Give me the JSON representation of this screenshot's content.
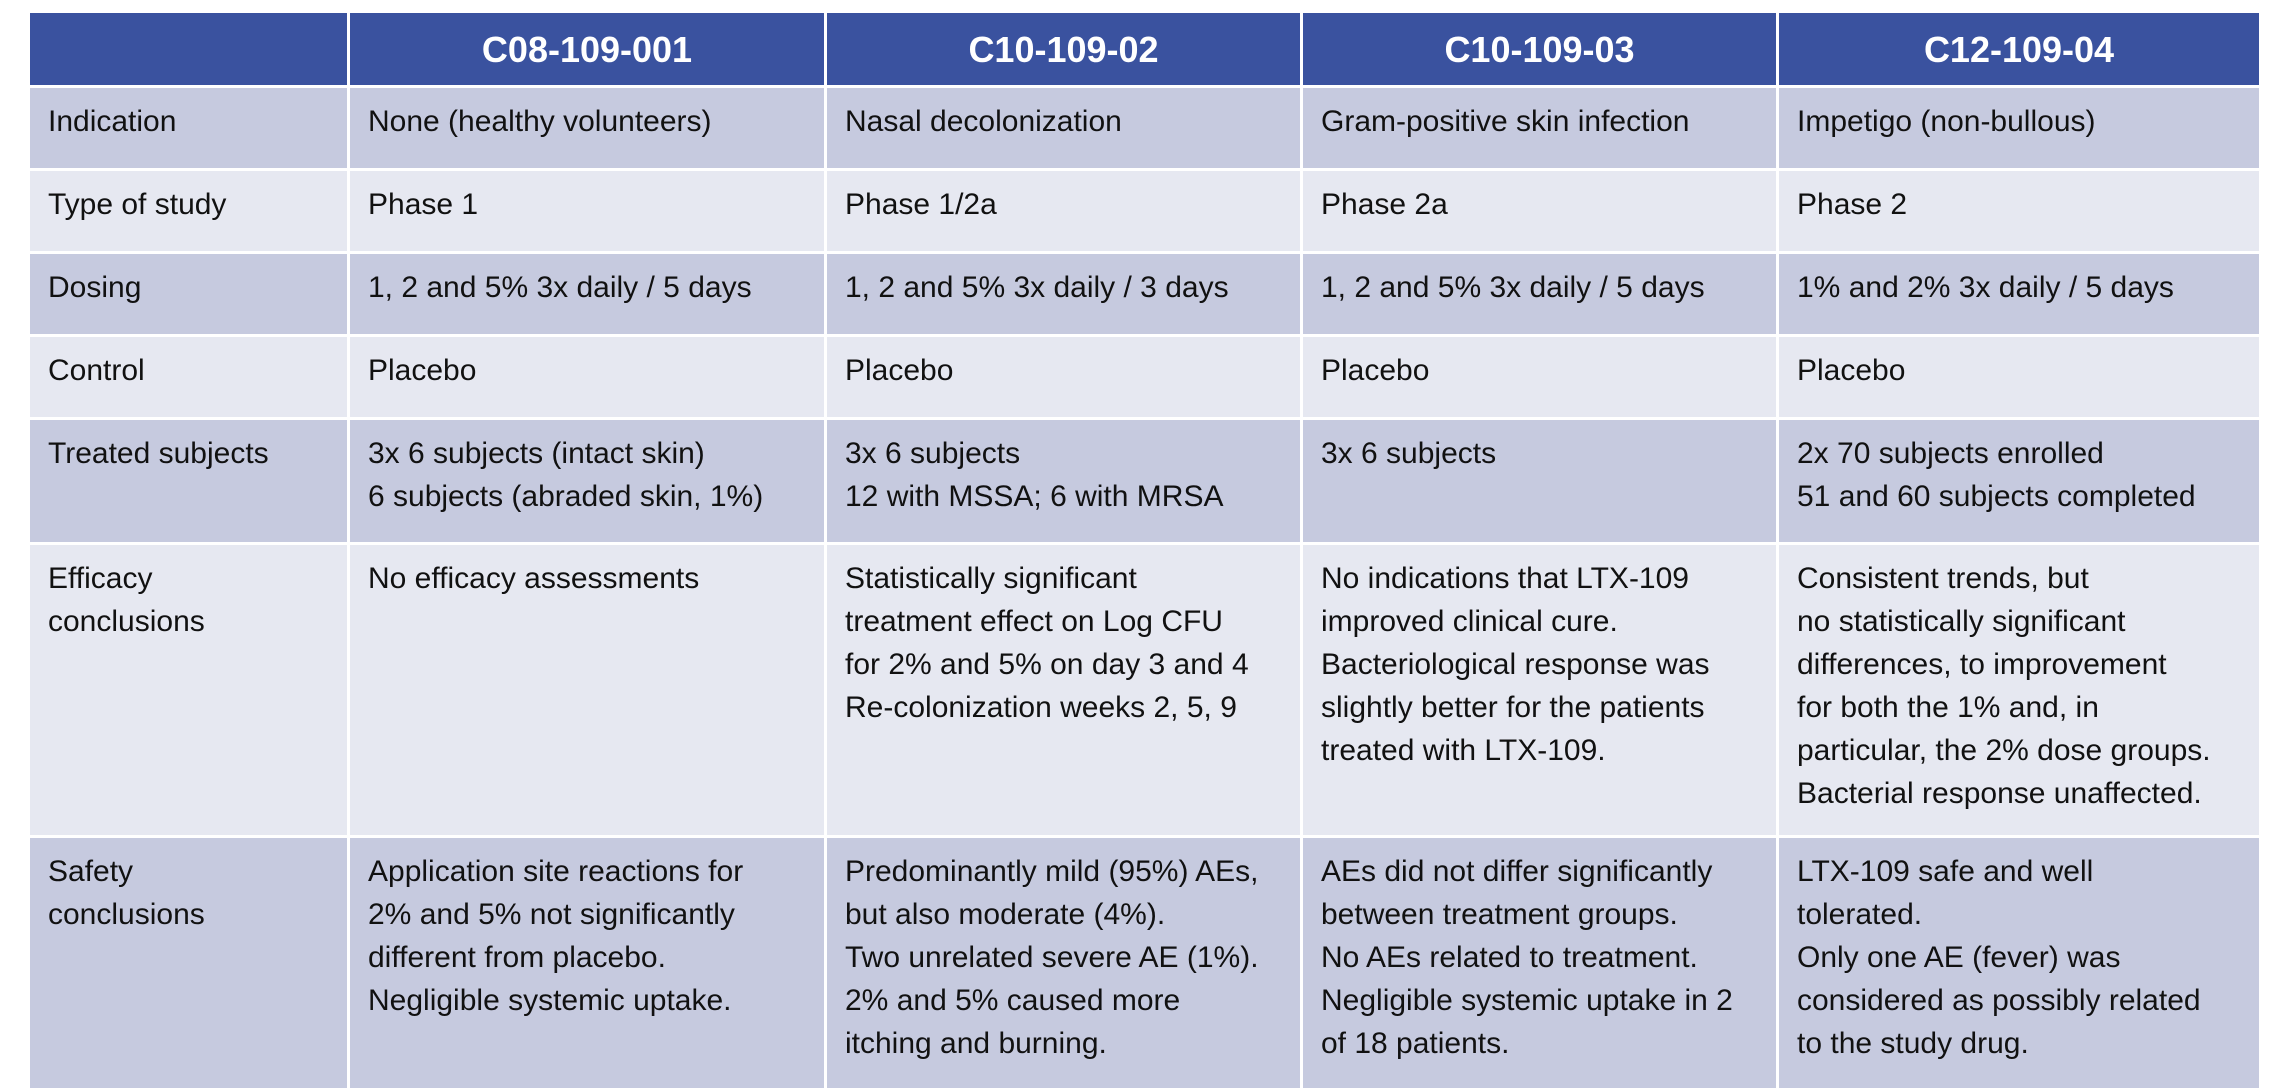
{
  "header": {
    "corner": "",
    "studies": [
      "C08-109-001",
      "C10-109-02",
      "C10-109-03",
      "C12-109-04"
    ]
  },
  "rows": [
    {
      "label": "Indication",
      "cells": [
        "None (healthy volunteers)",
        "Nasal decolonization",
        "Gram-positive skin infection",
        "Impetigo (non-bullous)"
      ]
    },
    {
      "label": "Type of study",
      "cells": [
        "Phase 1",
        "Phase 1/2a",
        "Phase 2a",
        "Phase 2"
      ]
    },
    {
      "label": "Dosing",
      "cells": [
        "1, 2 and 5% 3x daily / 5 days",
        "1, 2 and 5% 3x daily / 3 days",
        "1, 2 and 5% 3x daily / 5 days",
        "1% and 2% 3x daily / 5 days"
      ]
    },
    {
      "label": "Control",
      "cells": [
        "Placebo",
        "Placebo",
        "Placebo",
        "Placebo"
      ]
    },
    {
      "label": "Treated subjects",
      "cells": [
        "3x 6 subjects (intact skin)\n6 subjects (abraded skin, 1%)",
        "3x 6 subjects\n12 with MSSA; 6 with MRSA",
        "3x 6 subjects",
        "2x 70 subjects enrolled\n51 and 60 subjects completed"
      ]
    },
    {
      "label": "Efficacy\nconclusions",
      "cells": [
        "No efficacy assessments",
        "Statistically significant\ntreatment effect on Log CFU\nfor 2% and 5% on day 3 and 4\nRe-colonization weeks 2, 5, 9",
        "No indications that LTX-109\nimproved clinical cure.\nBacteriological response was\nslightly better for the patients\ntreated with LTX-109.",
        "Consistent trends, but\nno statistically significant\ndifferences, to improvement\nfor both the 1% and, in\nparticular, the 2% dose groups.\nBacterial response unaffected."
      ]
    },
    {
      "label": "Safety\nconclusions",
      "cells": [
        "Application site reactions for\n2% and 5% not significantly\ndifferent from placebo.\nNegligible systemic uptake.",
        "Predominantly mild (95%) AEs,\nbut also moderate (4%).\nTwo unrelated severe AE (1%).\n2% and 5% caused more\nitching and burning.",
        "AEs did not differ significantly\nbetween treatment groups.\nNo AEs related to treatment.\nNegligible systemic uptake in 2\nof 18 patients.",
        "LTX-109 safe and well\ntolerated.\nOnly one AE (fever) was\nconsidered as possibly related\nto the study drug."
      ]
    }
  ],
  "colors": {
    "header_bg": "#3a529f",
    "row_dark": "#c6cadf",
    "row_light": "#e6e8f1"
  }
}
